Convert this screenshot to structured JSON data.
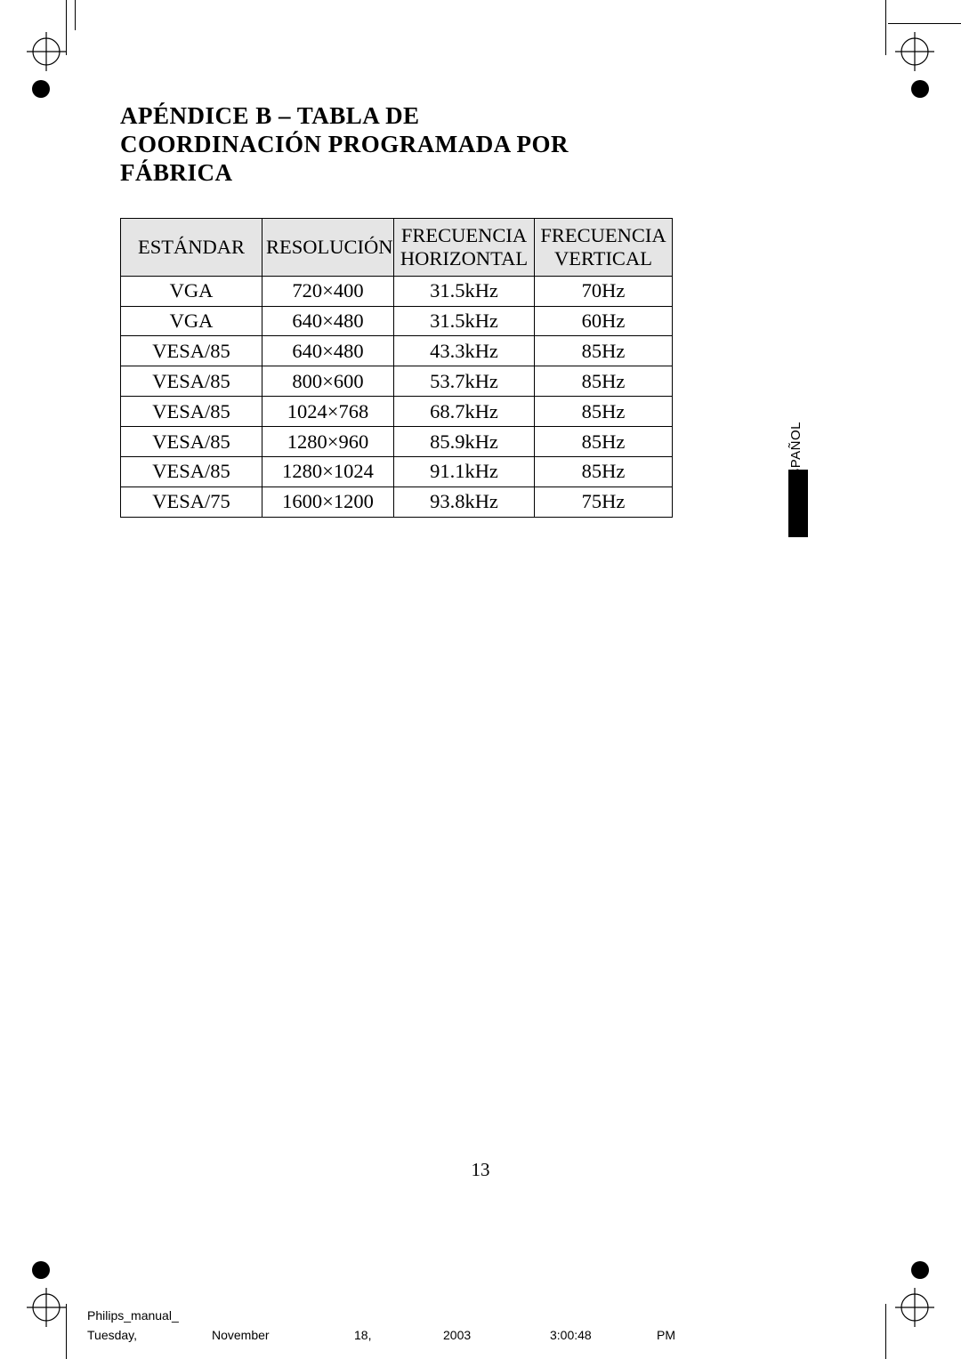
{
  "title_line1": "APÉNDICE B – TABLA DE",
  "title_line2": "COORDINACIÓN  PROGRAMADA POR FÁBRICA",
  "table": {
    "columns": [
      "ESTÁNDAR",
      "RESOLUCIÓN",
      "FRECUENCIA HORIZONTAL",
      "FRECUENCIA VERTICAL"
    ],
    "rows": [
      [
        "VGA",
        "720×400",
        "31.5kHz",
        "70Hz"
      ],
      [
        "VGA",
        "640×480",
        "31.5kHz",
        "60Hz"
      ],
      [
        "VESA/85",
        "640×480",
        "43.3kHz",
        "85Hz"
      ],
      [
        "VESA/85",
        "800×600",
        "53.7kHz",
        "85Hz"
      ],
      [
        "VESA/85",
        "1024×768",
        "68.7kHz",
        "85Hz"
      ],
      [
        "VESA/85",
        "1280×960",
        "85.9kHz",
        "85Hz"
      ],
      [
        "VESA/85",
        "1280×1024",
        "91.1kHz",
        "85Hz"
      ],
      [
        "VESA/75",
        "1600×1200",
        "93.8kHz",
        "75Hz"
      ]
    ],
    "header_bg": "#e5e5e5",
    "border_color": "#000000",
    "font_size_pt": 17
  },
  "side_tab": {
    "label": "ESPAÑOL"
  },
  "page_number": "13",
  "footer": {
    "filename": "Philips_manual_",
    "weekday": "Tuesday,",
    "month": "November",
    "day": "18,",
    "year": "2003",
    "time": "3:00:48",
    "ampm": "PM"
  },
  "colors": {
    "page_bg": "#ffffff",
    "text": "#000000",
    "reg_mark": "#000000"
  }
}
